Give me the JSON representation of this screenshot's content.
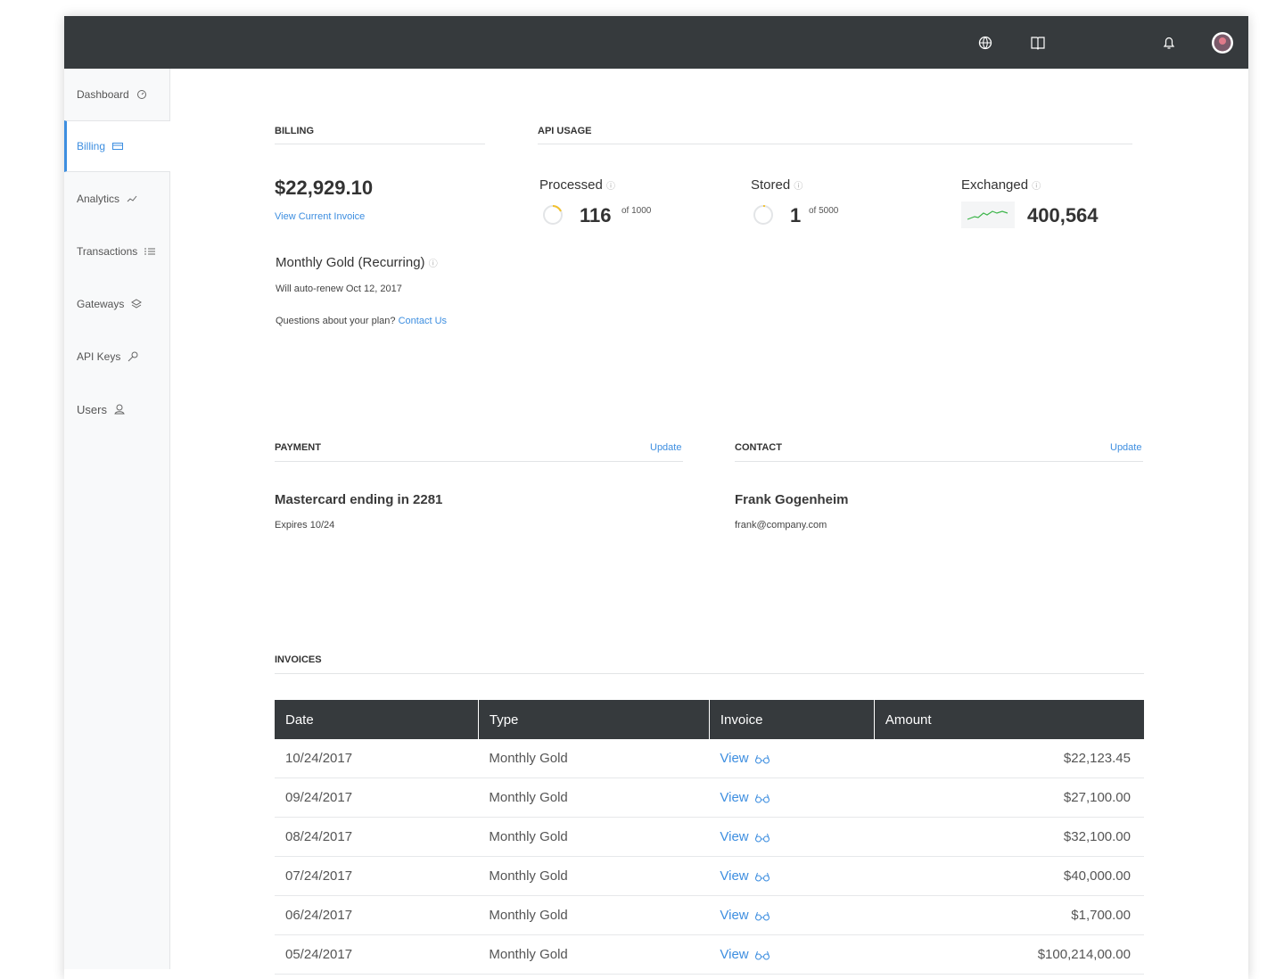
{
  "sidebar": {
    "items": [
      "Dashboard",
      "Billing",
      "Analytics",
      "Transactions",
      "Gateways",
      "API Keys",
      "Users"
    ]
  },
  "billing": {
    "title": "BILLING",
    "amount": "$22,929.10",
    "invoice_link": "View Current Invoice",
    "plan": "Monthly Gold (Recurring)",
    "renew": "Will auto-renew Oct 12, 2017",
    "question": "Questions about your plan?",
    "contact_link": "Contact Us"
  },
  "api_usage": {
    "title": "API USAGE",
    "metrics": [
      {
        "label": "Processed",
        "value": "116",
        "of": "of 1000"
      },
      {
        "label": "Stored",
        "value": "1",
        "of": "of 5000"
      },
      {
        "label": "Exchanged",
        "value": "400,564"
      }
    ]
  },
  "payment": {
    "title": "PAYMENT",
    "action": "Update",
    "card": "Mastercard ending in 2281",
    "expires": "Expires 10/24"
  },
  "contact": {
    "title": "CONTACT",
    "action": "Update",
    "name": "Frank Gogenheim",
    "email": "frank@company.com"
  },
  "invoices": {
    "title": "INVOICES",
    "columns": [
      "Date",
      "Type",
      "Invoice",
      "Amount"
    ],
    "rows": [
      [
        "10/24/2017",
        "Monthly Gold",
        "View",
        "$22,123.45"
      ],
      [
        "09/24/2017",
        "Monthly Gold",
        "View",
        "$27,100.00"
      ],
      [
        "08/24/2017",
        "Monthly Gold",
        "View",
        "$32,100.00"
      ],
      [
        "07/24/2017",
        "Monthly Gold",
        "View",
        "$40,000.00"
      ],
      [
        "06/24/2017",
        "Monthly Gold",
        "View",
        "$1,700.00"
      ],
      [
        "05/24/2017",
        "Monthly Gold",
        "View",
        "$100,214,00.00"
      ]
    ]
  }
}
